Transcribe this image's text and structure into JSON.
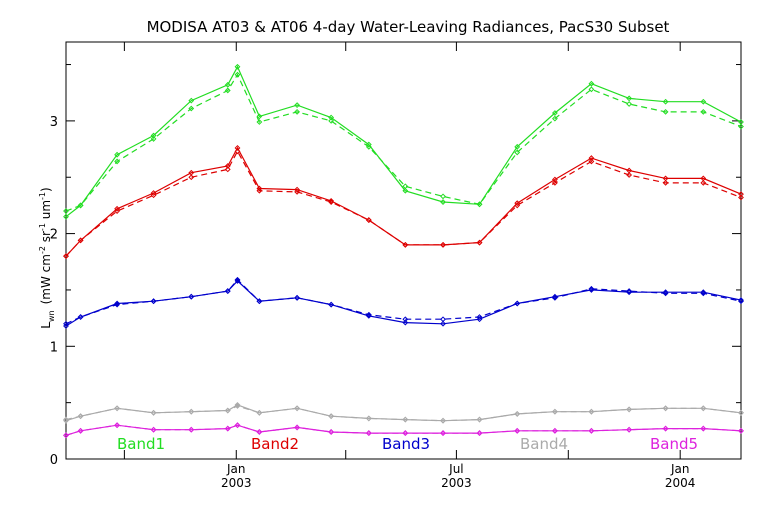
{
  "chart_data": {
    "type": "line",
    "title": "MODISA AT03 & AT06 4-day Water-Leaving Radiances, PacS30 Subset",
    "ylabel": "L_wn (mW cm^-2 sr^-1 um^-1)",
    "ylabel_main": "L",
    "ylabel_sub": "wn",
    "ylabel_units_a": "(mW cm",
    "ylabel_units_a_sup": "-2",
    "ylabel_units_b": " sr",
    "ylabel_units_b_sup": "-1",
    "ylabel_units_c": " um",
    "ylabel_units_c_sup": "-1",
    "ylabel_units_d": ")",
    "xlabel": "",
    "xlim": [
      "2002-08-14",
      "2004-02-20"
    ],
    "ylim": [
      0,
      3.7
    ],
    "grid": false,
    "y_ticks": [
      "0",
      "1",
      "2",
      "3"
    ],
    "x_tick_labels": [
      {
        "date": "2003-01-01",
        "month": "Jan",
        "year": "2003"
      },
      {
        "date": "2003-07-01",
        "month": "Jul",
        "year": "2003"
      },
      {
        "date": "2004-01-01",
        "month": "Jan",
        "year": "2004"
      }
    ],
    "x_minor_tick_dates": [
      "2002-10-01",
      "2003-04-01",
      "2003-10-01"
    ],
    "x": [
      "2002-08-15",
      "2002-09-15",
      "2002-10-15",
      "2002-11-15",
      "2002-12-15",
      "2003-01-15",
      "2003-02-15",
      "2003-03-15",
      "2003-04-15",
      "2003-05-15",
      "2003-06-15",
      "2003-07-15",
      "2003-08-15",
      "2003-09-15",
      "2003-10-15",
      "2003-11-15",
      "2003-12-15",
      "2004-01-15",
      "2004-02-15"
    ],
    "x_points": [
      "2002-08-14",
      "2002-08-26",
      "2002-09-25",
      "2002-10-25",
      "2002-11-25",
      "2002-12-25",
      "2003-01-02",
      "2003-01-20",
      "2003-02-20",
      "2003-03-20",
      "2003-04-20",
      "2003-05-20",
      "2003-06-20",
      "2003-07-20",
      "2003-08-20",
      "2003-09-20",
      "2003-10-20",
      "2003-11-20",
      "2003-12-20",
      "2004-01-20",
      "2004-02-20"
    ],
    "series": [
      {
        "name": "Band1",
        "color": "#22dd22",
        "solid": [
          2.15,
          2.25,
          2.7,
          2.87,
          3.18,
          3.32,
          3.48,
          3.04,
          3.14,
          3.03,
          2.79,
          2.38,
          2.28,
          2.26,
          2.77,
          3.07,
          3.33,
          3.2,
          3.17,
          3.17,
          2.99
        ],
        "dashed": [
          2.2,
          2.25,
          2.64,
          2.84,
          3.11,
          3.27,
          3.41,
          2.99,
          3.08,
          3.0,
          2.77,
          2.42,
          2.33,
          2.26,
          2.72,
          3.02,
          3.28,
          3.15,
          3.08,
          3.08,
          2.95
        ]
      },
      {
        "name": "Band2",
        "color": "#dd0000",
        "solid": [
          1.8,
          1.94,
          2.22,
          2.36,
          2.54,
          2.6,
          2.76,
          2.4,
          2.39,
          2.29,
          2.12,
          1.9,
          1.9,
          1.92,
          2.27,
          2.48,
          2.67,
          2.56,
          2.49,
          2.49,
          2.35
        ],
        "dashed": [
          1.8,
          1.94,
          2.2,
          2.34,
          2.5,
          2.57,
          2.73,
          2.38,
          2.37,
          2.28,
          2.12,
          1.9,
          1.9,
          1.92,
          2.25,
          2.45,
          2.64,
          2.52,
          2.45,
          2.45,
          2.32
        ]
      },
      {
        "name": "Band3",
        "color": "#0000cc",
        "solid": [
          1.18,
          1.26,
          1.38,
          1.4,
          1.44,
          1.49,
          1.58,
          1.4,
          1.43,
          1.37,
          1.27,
          1.21,
          1.2,
          1.24,
          1.38,
          1.44,
          1.5,
          1.48,
          1.48,
          1.48,
          1.41
        ],
        "dashed": [
          1.2,
          1.26,
          1.37,
          1.4,
          1.44,
          1.49,
          1.59,
          1.4,
          1.43,
          1.37,
          1.28,
          1.24,
          1.24,
          1.26,
          1.38,
          1.43,
          1.51,
          1.49,
          1.47,
          1.47,
          1.4
        ]
      },
      {
        "name": "Band4",
        "color": "#aaaaaa",
        "solid": [
          0.34,
          0.38,
          0.45,
          0.41,
          0.42,
          0.43,
          0.48,
          0.41,
          0.45,
          0.38,
          0.36,
          0.35,
          0.34,
          0.35,
          0.4,
          0.42,
          0.42,
          0.44,
          0.45,
          0.45,
          0.41
        ],
        "dashed": [
          0.35,
          0.38,
          0.45,
          0.41,
          0.42,
          0.43,
          0.47,
          0.41,
          0.45,
          0.38,
          0.36,
          0.35,
          0.34,
          0.35,
          0.4,
          0.42,
          0.42,
          0.44,
          0.45,
          0.45,
          0.41
        ]
      },
      {
        "name": "Band5",
        "color": "#dd22dd",
        "solid": [
          0.21,
          0.25,
          0.3,
          0.26,
          0.26,
          0.27,
          0.3,
          0.24,
          0.28,
          0.24,
          0.23,
          0.23,
          0.23,
          0.23,
          0.25,
          0.25,
          0.25,
          0.26,
          0.27,
          0.27,
          0.25
        ],
        "dashed": [
          0.21,
          0.25,
          0.3,
          0.26,
          0.26,
          0.27,
          0.3,
          0.24,
          0.28,
          0.24,
          0.23,
          0.23,
          0.23,
          0.23,
          0.25,
          0.25,
          0.25,
          0.26,
          0.27,
          0.27,
          0.25
        ]
      }
    ],
    "legend": [
      "Band1",
      "Band2",
      "Band3",
      "Band4",
      "Band5"
    ],
    "legend_position": "bottom-inside"
  }
}
